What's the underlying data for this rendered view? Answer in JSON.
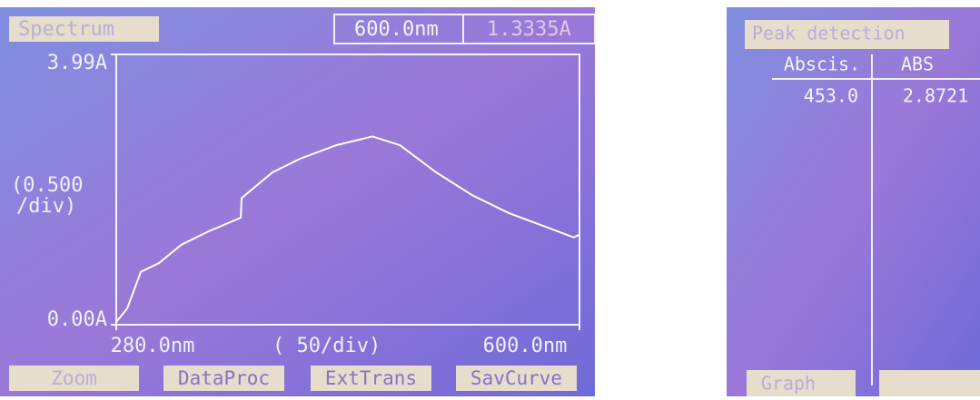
{
  "left_panel": {
    "title": "Spectrum",
    "cursor_wavelength": "600.0nm",
    "cursor_abs": "1.3335A",
    "y_scale": [
      "(0.500",
      "/div)"
    ],
    "x_scale": "(  50/div)",
    "buttons": [
      "Zoom",
      "DataProc",
      "ExtTrans",
      "SavCurve"
    ]
  },
  "chart_data": {
    "type": "line",
    "x": [
      280,
      287.5,
      297,
      309.5,
      325,
      344,
      366,
      366.6,
      388,
      407,
      432,
      457,
      476,
      501,
      526,
      551,
      576,
      596,
      600
    ],
    "values": [
      0.04,
      0.24,
      0.78,
      0.91,
      1.18,
      1.38,
      1.58,
      1.87,
      2.25,
      2.45,
      2.65,
      2.78,
      2.65,
      2.25,
      1.91,
      1.65,
      1.45,
      1.29,
      1.33
    ],
    "color": "#ffffff",
    "xlim": [
      280,
      600
    ],
    "ylim": [
      0,
      3.99
    ],
    "xticks": [
      {
        "value": 280,
        "label": "280.0nm"
      },
      {
        "value": 600,
        "label": "600.0nm"
      }
    ],
    "yticks": [
      {
        "value": 0,
        "label": "0.00A"
      },
      {
        "value": 3.99,
        "label": "3.99A"
      }
    ]
  },
  "right_panel": {
    "title": "Peak detection",
    "table": {
      "header": [
        "Abscis.",
        "ABS"
      ],
      "rows": [
        [
          "453.0",
          "2.8721"
        ]
      ]
    },
    "buttons": [
      "Graph"
    ]
  }
}
